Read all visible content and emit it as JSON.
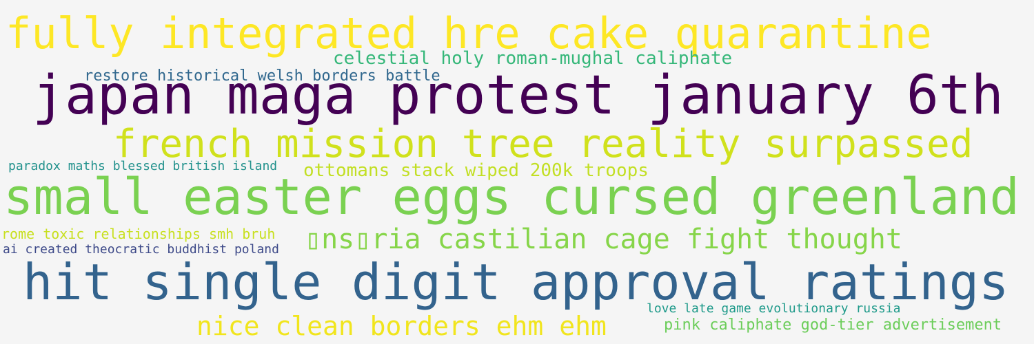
{
  "phrases": [
    {
      "text": "fully integrated hre cake quarantine",
      "color": "#fde725"
    },
    {
      "text": "celestial holy roman-mughal caliphate",
      "color": "#35b779"
    },
    {
      "text": "restore historical welsh borders battle",
      "color": "#31688e"
    },
    {
      "text": "japan maga protest january 6th",
      "color": "#440154"
    },
    {
      "text": "french mission tree reality surpassed",
      "color": "#d0e11c"
    },
    {
      "text": "paradox maths blessed british island",
      "color": "#21918c"
    },
    {
      "text": "ottomans stack wiped 200k troops",
      "color": "#c2df23"
    },
    {
      "text": "small easter eggs cursed greenland",
      "color": "#7ad151"
    },
    {
      "text": "rome toxic relationships smh bruh",
      "color": "#c8e020"
    },
    {
      "text": "▯ns▯ria castilian cage fight thought",
      "color": "#86d549"
    },
    {
      "text": "ai created theocratic buddhist poland",
      "color": "#3e4a89"
    },
    {
      "text": "hit single digit approval ratings",
      "color": "#33638d"
    },
    {
      "text": "love late game evolutionary russia",
      "color": "#1f9a8a"
    },
    {
      "text": "nice clean borders ehm ehm",
      "color": "#f1e51d"
    },
    {
      "text": "pink caliphate god-tier advertisement",
      "color": "#6ccd5a"
    }
  ]
}
